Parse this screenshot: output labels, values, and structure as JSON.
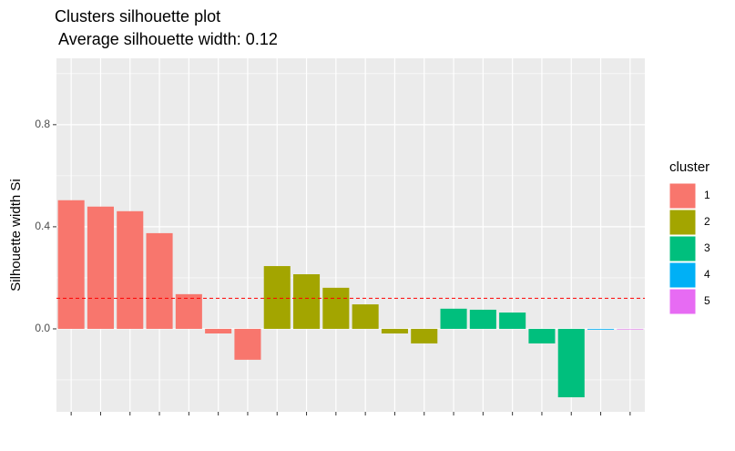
{
  "chart_data": {
    "type": "bar",
    "title": "Clusters silhouette plot",
    "subtitle": " Average silhouette width: 0.12",
    "y_label": "Silhouette width Si",
    "legend_title": "cluster",
    "categories": [
      null,
      null,
      null,
      null,
      null,
      null,
      null,
      null,
      null,
      null,
      null,
      null,
      null,
      null,
      null,
      null,
      null,
      null,
      null,
      null
    ],
    "series": [
      {
        "name": "1",
        "color": "#f8766d",
        "values": [
          0.504,
          0.479,
          0.461,
          0.375,
          0.136,
          -0.018,
          -0.121,
          null,
          null,
          null,
          null,
          null,
          null,
          null,
          null,
          null,
          null,
          null,
          null,
          null
        ]
      },
      {
        "name": "2",
        "color": "#a3a500",
        "values": [
          null,
          null,
          null,
          null,
          null,
          null,
          null,
          0.246,
          0.214,
          0.161,
          0.096,
          -0.018,
          -0.057,
          null,
          null,
          null,
          null,
          null,
          null,
          null
        ]
      },
      {
        "name": "3",
        "color": "#00bf7d",
        "values": [
          null,
          null,
          null,
          null,
          null,
          null,
          null,
          null,
          null,
          null,
          null,
          null,
          null,
          0.079,
          0.075,
          0.064,
          -0.057,
          -0.268,
          null,
          null
        ]
      },
      {
        "name": "4",
        "color": "#00b0f6",
        "values": [
          null,
          null,
          null,
          null,
          null,
          null,
          null,
          null,
          null,
          null,
          null,
          null,
          null,
          null,
          null,
          null,
          null,
          null,
          -0.003,
          null
        ]
      },
      {
        "name": "5",
        "color": "#e76bf3",
        "values": [
          null,
          null,
          null,
          null,
          null,
          null,
          null,
          null,
          null,
          null,
          null,
          null,
          null,
          null,
          null,
          null,
          null,
          null,
          null,
          -0.002
        ]
      }
    ],
    "average": 0.12,
    "average_color": "#ff0000",
    "ylim": [
      -0.325,
      1.06
    ],
    "yticks": [
      {
        "value": 0,
        "label": "0.0"
      },
      0.4,
      0.8
    ],
    "minor_yticks": [
      -0.2,
      0.2,
      0.6,
      1.0
    ],
    "grid": true
  }
}
